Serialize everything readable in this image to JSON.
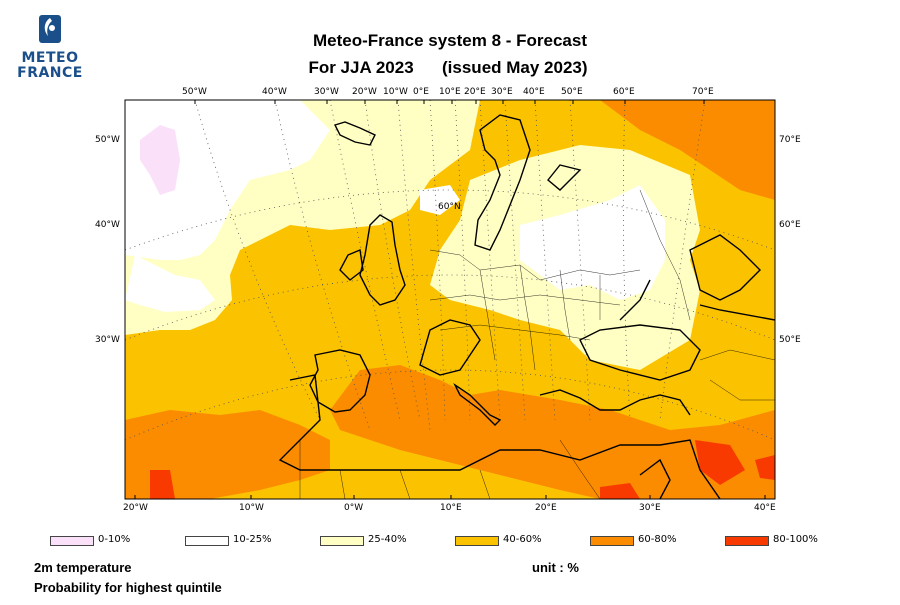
{
  "logo": {
    "line1": "METEO",
    "line2": "FRANCE"
  },
  "title": {
    "line1": "Meteo-France system 8  -  Forecast",
    "line2a": "For JJA 2023",
    "line2b": "(issued May 2023)"
  },
  "top_ticks": [
    "50°W",
    "40°W",
    "30°W",
    "20°W",
    "10°W",
    "0°E",
    "10°E",
    "20°E",
    "30°E",
    "40°E",
    "50°E",
    "60°E",
    "70°E"
  ],
  "bottom_ticks": [
    "20°W",
    "10°W",
    "0°W",
    "10°E",
    "20°E",
    "30°E",
    "40°E"
  ],
  "left_ticks": [
    "50°W",
    "40°W",
    "30°W"
  ],
  "right_ticks": [
    "70°E",
    "60°E",
    "50°E"
  ],
  "lat_label": "60°N",
  "legend": [
    {
      "label": "0-10%",
      "color": "#fbe0fa"
    },
    {
      "label": "10-25%",
      "color": "#ffffff"
    },
    {
      "label": "25-40%",
      "color": "#ffffc4"
    },
    {
      "label": "40-60%",
      "color": "#fbc200"
    },
    {
      "label": "60-80%",
      "color": "#fb8c00"
    },
    {
      "label": "80-100%",
      "color": "#f93a00"
    }
  ],
  "footer": {
    "variable": "2m temperature",
    "probability": "Probability for highest quintile",
    "unit": "unit : %"
  }
}
